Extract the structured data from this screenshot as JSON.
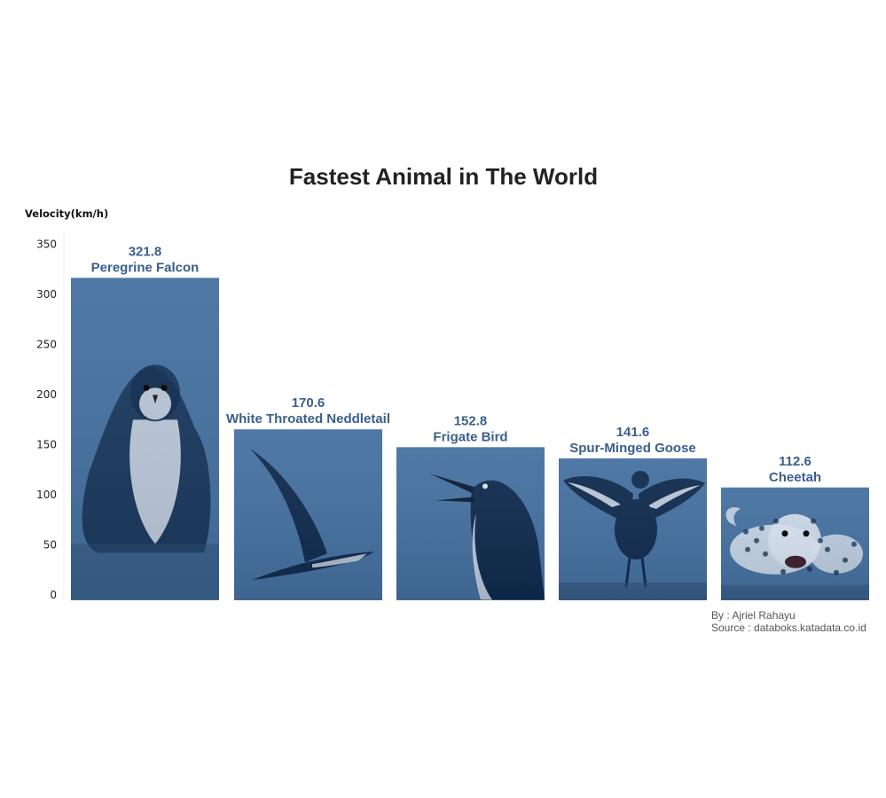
{
  "chart_data": {
    "type": "bar",
    "title": "Fastest Animal in The World",
    "ylabel": "Velocity(km/h)",
    "xlabel": "",
    "categories": [
      "Peregrine Falcon",
      "White Throated Neddletail",
      "Frigate Bird",
      "Spur-Minged Goose",
      "Cheetah"
    ],
    "values": [
      321.8,
      170.6,
      152.8,
      141.6,
      112.6
    ],
    "value_labels": [
      "321.8",
      "170.6",
      "152.8",
      "141.6",
      "112.6"
    ],
    "ylim": [
      0,
      350
    ],
    "yticks": [
      0,
      50,
      100,
      150,
      200,
      250,
      300,
      350
    ],
    "ytick_labels": [
      "0",
      "50",
      "100",
      "150",
      "200",
      "250",
      "300",
      "350"
    ],
    "grid": false,
    "legend": "none",
    "bar_fill": "image of each animal, tinted blue",
    "icons": [
      "falcon-image",
      "needletail-image",
      "frigate-bird-image",
      "goose-image",
      "cheetah-image"
    ]
  },
  "credits": {
    "author": "By : Ajriel Rahayu",
    "source": "Source : databoks.katadata.co.id"
  },
  "colors": {
    "bar": "#4470a0",
    "bar_dark": "#0f2a4e",
    "bar_light": "#d8e2ee",
    "label": "#3a5f8c",
    "title": "#222222"
  }
}
